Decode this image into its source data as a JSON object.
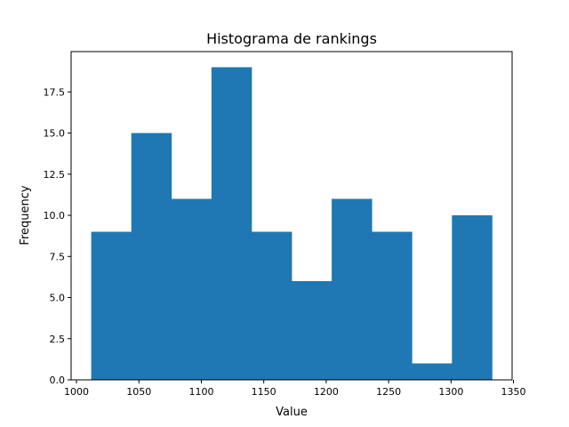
{
  "chart_data": {
    "type": "bar",
    "title": "Histograma de rankings",
    "xlabel": "Value",
    "ylabel": "Frequency",
    "bin_edges": [
      1011.8,
      1043.9,
      1076.0,
      1108.1,
      1140.2,
      1172.3,
      1204.4,
      1236.5,
      1268.6,
      1300.7,
      1332.8
    ],
    "values": [
      9,
      15,
      11,
      19,
      9,
      6,
      11,
      9,
      1,
      10
    ],
    "xlim": [
      995.7,
      1348.9
    ],
    "ylim": [
      0,
      19.95
    ],
    "xticks": [
      1000,
      1050,
      1100,
      1150,
      1200,
      1250,
      1300,
      1350
    ],
    "xtick_labels": [
      "1000",
      "1050",
      "1100",
      "1150",
      "1200",
      "1250",
      "1300",
      "1350"
    ],
    "yticks": [
      0,
      2.5,
      5,
      7.5,
      10,
      12.5,
      15,
      17.5
    ],
    "ytick_labels": [
      "0.0",
      "2.5",
      "5.0",
      "7.5",
      "10.0",
      "12.5",
      "15.0",
      "17.5"
    ],
    "bar_color": "#1f77b4",
    "grid": false,
    "legend": "none"
  }
}
